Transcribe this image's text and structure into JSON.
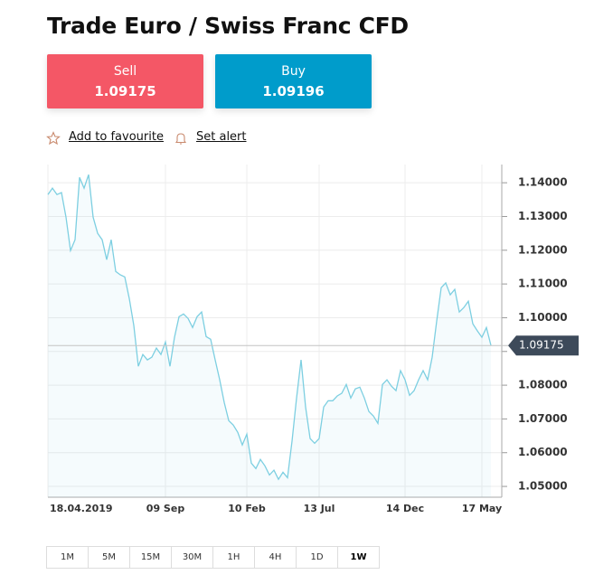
{
  "header": {
    "title": "Trade Euro / Swiss Franc CFD"
  },
  "sell": {
    "label": "Sell",
    "price": "1.09175"
  },
  "buy": {
    "label": "Buy",
    "price": "1.09196"
  },
  "links": [
    "Add to favourite",
    "Set alert"
  ],
  "chart_data": {
    "type": "line",
    "categories": [
      "18.04.2019",
      null,
      null,
      null,
      null,
      null,
      null,
      null,
      null,
      null,
      null,
      null,
      null,
      null,
      null,
      null,
      null,
      null,
      null,
      null,
      null,
      null,
      null,
      null,
      null,
      null,
      "09 Sep",
      null,
      null,
      null,
      null,
      null,
      null,
      null,
      null,
      null,
      null,
      null,
      null,
      null,
      null,
      null,
      null,
      null,
      "10 Feb",
      null,
      null,
      null,
      null,
      null,
      null,
      null,
      null,
      null,
      null,
      null,
      null,
      null,
      null,
      null,
      "13 Jul",
      null,
      null,
      null,
      null,
      null,
      null,
      null,
      null,
      null,
      null,
      null,
      null,
      null,
      null,
      null,
      null,
      null,
      null,
      "14 Dec",
      null,
      null,
      null,
      null,
      null,
      null,
      null,
      null,
      null,
      null,
      null,
      null,
      null,
      null,
      null,
      null,
      "17 May",
      null,
      null
    ],
    "series": [
      {
        "color": "#7dcfe1",
        "values": [
          1.1365,
          1.1384,
          1.1365,
          1.1371,
          1.1298,
          1.1199,
          1.1231,
          1.1416,
          1.1384,
          1.1424,
          1.1298,
          1.125,
          1.1231,
          1.1172,
          1.1231,
          1.1137,
          1.1127,
          1.1121,
          1.1057,
          1.0977,
          1.0856,
          1.0891,
          1.0875,
          1.0883,
          1.091,
          1.0891,
          1.0928,
          1.0856,
          1.0942,
          1.1003,
          1.1011,
          1.0998,
          1.0971,
          1.1003,
          1.1017,
          1.0944,
          1.0936,
          1.0875,
          1.0816,
          1.0749,
          1.0695,
          1.0682,
          1.066,
          1.0623,
          1.0655,
          1.0569,
          1.0553,
          1.058,
          1.0561,
          1.0534,
          1.0548,
          1.0521,
          1.0542,
          1.0526,
          1.0634,
          1.0762,
          1.0875,
          1.0735,
          1.0642,
          1.0628,
          1.0642,
          1.0735,
          1.0754,
          1.0754,
          1.0768,
          1.0776,
          1.0802,
          1.0762,
          1.0789,
          1.0794,
          1.0762,
          1.0722,
          1.0709,
          1.0687,
          1.0802,
          1.0816,
          1.0797,
          1.0784,
          1.0843,
          1.0816,
          1.077,
          1.0784,
          1.0816,
          1.0843,
          1.0816,
          1.0883,
          1.099,
          1.1089,
          1.1103,
          1.1068,
          1.1084,
          1.1017,
          1.103,
          1.1049,
          1.0982,
          1.0961,
          1.0942,
          1.0971,
          1.0918
        ]
      }
    ],
    "ylim": [
      1.0468,
      1.1454
    ],
    "yticks": [
      {
        "value": 1.14,
        "label": "1.14000"
      },
      {
        "value": 1.13,
        "label": "1.13000"
      },
      {
        "value": 1.12,
        "label": "1.12000"
      },
      {
        "value": 1.11,
        "label": "1.11000"
      },
      {
        "value": 1.1,
        "label": "1.10000"
      },
      {
        "value": 1.09,
        "label": "1.09000"
      },
      {
        "value": 1.08,
        "label": "1.08000"
      },
      {
        "value": 1.07,
        "label": "1.07000"
      },
      {
        "value": 1.06,
        "label": "1.06000"
      },
      {
        "value": 1.05,
        "label": "1.05000"
      }
    ],
    "current_value": 1.09175,
    "grid": true
  },
  "timeframes": {
    "options": [
      "1M",
      "5M",
      "15M",
      "30M",
      "1H",
      "4H",
      "1D",
      "1W"
    ],
    "active": 7
  }
}
